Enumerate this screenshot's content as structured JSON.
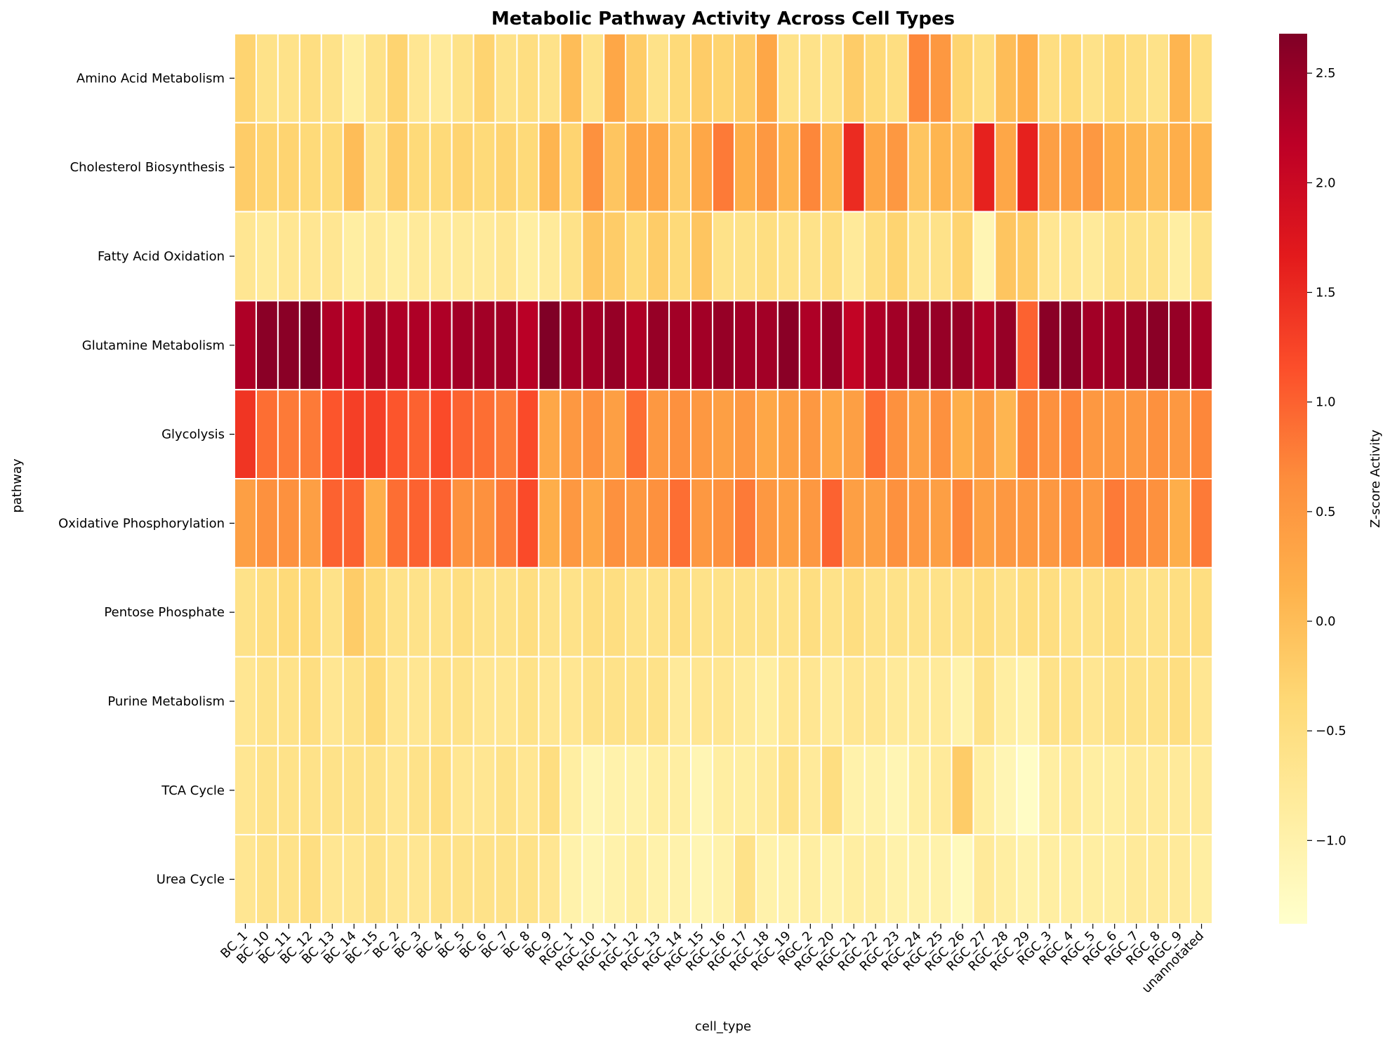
{
  "chart_data": {
    "type": "heatmap",
    "title": "Metabolic Pathway Activity Across Cell Types",
    "xlabel": "cell_type",
    "ylabel": "pathway",
    "colorbar_label": "Z-score Activity",
    "colormap": "YlOrRd",
    "vmin": -1.38,
    "vmax": 2.68,
    "colorbar_ticks": [
      "−1.0",
      "−0.5",
      "0.0",
      "0.5",
      "1.0",
      "1.5",
      "2.0",
      "2.5"
    ],
    "colorbar_tick_values": [
      -1.0,
      -0.5,
      0.0,
      0.5,
      1.0,
      1.5,
      2.0,
      2.5
    ],
    "rows": [
      "Amino Acid Metabolism",
      "Cholesterol Biosynthesis",
      "Fatty Acid Oxidation",
      "Glutamine Metabolism",
      "Glycolysis",
      "Oxidative Phosphorylation",
      "Pentose Phosphate",
      "Purine Metabolism",
      "TCA Cycle",
      "Urea Cycle"
    ],
    "columns": [
      "BC_1",
      "BC_10",
      "BC_11",
      "BC_12",
      "BC_13",
      "BC_14",
      "BC_15",
      "BC_2",
      "BC_3",
      "BC_4",
      "BC_5",
      "BC_6",
      "BC_7",
      "BC_8",
      "BC_9",
      "RGC_1",
      "RGC_10",
      "RGC_11",
      "RGC_12",
      "RGC_13",
      "RGC_14",
      "RGC_15",
      "RGC_16",
      "RGC_17",
      "RGC_18",
      "RGC_19",
      "RGC_2",
      "RGC_20",
      "RGC_21",
      "RGC_22",
      "RGC_23",
      "RGC_24",
      "RGC_25",
      "RGC_26",
      "RGC_27",
      "RGC_28",
      "RGC_29",
      "RGC_3",
      "RGC_4",
      "RGC_5",
      "RGC_6",
      "RGC_7",
      "RGC_8",
      "RGC_9",
      "unannotated"
    ],
    "values": [
      [
        -0.3,
        -0.6,
        -0.6,
        -0.5,
        -0.6,
        -0.9,
        -0.6,
        -0.3,
        -0.7,
        -0.8,
        -0.6,
        -0.3,
        -0.6,
        -0.5,
        -0.6,
        0.0,
        -0.6,
        0.3,
        -0.2,
        -0.6,
        -0.4,
        -0.2,
        -0.3,
        -0.2,
        0.3,
        -0.6,
        -0.6,
        -0.6,
        -0.2,
        -0.4,
        -0.5,
        0.7,
        0.5,
        -0.3,
        -0.5,
        0.0,
        0.2,
        -0.5,
        -0.4,
        -0.6,
        -0.4,
        -0.5,
        -0.6,
        0.1,
        -0.5
      ],
      [
        -0.2,
        -0.3,
        -0.3,
        -0.4,
        -0.4,
        0.0,
        -0.6,
        -0.2,
        -0.4,
        -0.4,
        -0.3,
        -0.4,
        -0.3,
        -0.4,
        0.1,
        -0.3,
        0.6,
        -0.1,
        0.3,
        0.3,
        -0.2,
        0.3,
        0.8,
        0.2,
        0.5,
        0.1,
        0.7,
        0.1,
        1.5,
        0.3,
        0.5,
        -0.1,
        0.1,
        0.0,
        1.6,
        0.3,
        1.6,
        0.4,
        0.4,
        0.5,
        0.2,
        0.1,
        0.0,
        0.2,
        0.1
      ],
      [
        -0.7,
        -0.8,
        -0.7,
        -0.7,
        -0.7,
        -0.9,
        -0.8,
        -0.9,
        -0.8,
        -0.8,
        -0.8,
        -0.8,
        -0.7,
        -0.9,
        -0.8,
        -0.6,
        -0.1,
        -0.2,
        -0.4,
        -0.2,
        -0.4,
        -0.1,
        -0.6,
        -0.6,
        -0.5,
        -0.6,
        -0.6,
        -0.5,
        -0.8,
        -0.5,
        -0.3,
        -0.6,
        -0.6,
        -0.3,
        -1.1,
        -0.1,
        -0.2,
        -0.7,
        -0.7,
        -0.8,
        -0.6,
        -0.6,
        -0.6,
        -0.9,
        -0.6
      ],
      [
        2.3,
        2.6,
        2.6,
        2.7,
        2.3,
        2.2,
        2.4,
        2.3,
        2.3,
        2.3,
        2.4,
        2.4,
        2.4,
        2.2,
        2.7,
        2.4,
        2.4,
        2.5,
        2.3,
        2.5,
        2.4,
        2.4,
        2.5,
        2.4,
        2.4,
        2.6,
        2.3,
        2.5,
        2.1,
        2.3,
        2.4,
        2.5,
        2.5,
        2.5,
        2.3,
        2.5,
        1.0,
        2.6,
        2.6,
        2.4,
        2.4,
        2.5,
        2.6,
        2.5,
        2.4
      ],
      [
        1.4,
        0.9,
        0.8,
        0.8,
        1.1,
        1.3,
        1.3,
        1.1,
        1.0,
        1.2,
        1.0,
        0.9,
        0.8,
        1.2,
        0.3,
        0.5,
        0.6,
        0.4,
        0.9,
        0.5,
        0.6,
        0.5,
        0.4,
        0.5,
        0.3,
        0.4,
        0.5,
        0.3,
        0.4,
        0.9,
        0.6,
        0.4,
        0.6,
        0.2,
        0.4,
        0.1,
        0.7,
        0.6,
        0.7,
        0.5,
        0.5,
        0.5,
        0.6,
        0.5,
        0.7
      ],
      [
        0.4,
        0.6,
        0.6,
        0.4,
        1.0,
        1.0,
        0.2,
        0.9,
        1.0,
        1.0,
        0.6,
        0.6,
        0.8,
        1.2,
        0.2,
        0.5,
        0.3,
        0.6,
        0.5,
        0.6,
        0.9,
        0.5,
        0.6,
        0.8,
        0.5,
        0.4,
        0.5,
        1.0,
        0.4,
        0.4,
        0.6,
        0.5,
        0.4,
        0.7,
        0.4,
        0.5,
        0.5,
        0.5,
        0.6,
        0.5,
        0.8,
        0.7,
        0.6,
        0.2,
        0.8
      ],
      [
        -0.6,
        -0.5,
        -0.4,
        -0.4,
        -0.6,
        -0.2,
        -0.4,
        -0.6,
        -0.6,
        -0.6,
        -0.5,
        -0.6,
        -0.6,
        -0.5,
        -0.6,
        -0.6,
        -0.5,
        -0.5,
        -0.6,
        -0.6,
        -0.5,
        -0.6,
        -0.6,
        -0.6,
        -0.6,
        -0.6,
        -0.5,
        -0.6,
        -0.5,
        -0.6,
        -0.6,
        -0.6,
        -0.6,
        -0.6,
        -0.5,
        -0.6,
        -0.5,
        -0.5,
        -0.6,
        -0.6,
        -0.5,
        -0.6,
        -0.6,
        -0.5,
        -0.5
      ],
      [
        -0.7,
        -0.6,
        -0.6,
        -0.5,
        -0.7,
        -0.6,
        -0.4,
        -0.7,
        -0.7,
        -0.6,
        -0.6,
        -0.7,
        -0.7,
        -0.6,
        -0.7,
        -0.7,
        -0.6,
        -0.6,
        -0.6,
        -0.6,
        -0.8,
        -0.7,
        -0.7,
        -0.8,
        -0.9,
        -0.7,
        -0.7,
        -0.8,
        -0.7,
        -0.7,
        -0.8,
        -0.8,
        -0.8,
        -1.0,
        -0.6,
        -0.9,
        -1.0,
        -0.6,
        -0.6,
        -0.7,
        -0.6,
        -0.6,
        -0.6,
        -0.5,
        -0.7
      ],
      [
        -0.7,
        -0.6,
        -0.6,
        -0.6,
        -0.6,
        -0.6,
        -0.6,
        -0.7,
        -0.6,
        -0.5,
        -0.7,
        -0.7,
        -0.6,
        -0.7,
        -0.5,
        -0.9,
        -1.1,
        -1.0,
        -1.0,
        -0.9,
        -0.9,
        -1.1,
        -0.9,
        -0.9,
        -0.8,
        -0.6,
        -0.8,
        -0.5,
        -1.0,
        -1.0,
        -1.1,
        -0.9,
        -0.8,
        -0.2,
        -0.9,
        -1.1,
        -1.3,
        -0.9,
        -0.8,
        -0.9,
        -0.9,
        -0.8,
        -0.8,
        -0.8,
        -0.8
      ],
      [
        -0.7,
        -0.6,
        -0.6,
        -0.5,
        -0.7,
        -0.7,
        -0.6,
        -0.7,
        -0.7,
        -0.6,
        -0.6,
        -0.6,
        -0.6,
        -0.6,
        -0.7,
        -1.0,
        -1.1,
        -1.0,
        -0.9,
        -1.0,
        -1.0,
        -1.1,
        -1.0,
        -0.6,
        -1.0,
        -1.0,
        -0.9,
        -1.0,
        -0.9,
        -0.9,
        -1.0,
        -1.0,
        -1.0,
        -1.2,
        -0.8,
        -0.9,
        -1.0,
        -0.9,
        -0.9,
        -0.9,
        -0.9,
        -0.8,
        -0.8,
        -0.8,
        -0.9
      ]
    ]
  }
}
